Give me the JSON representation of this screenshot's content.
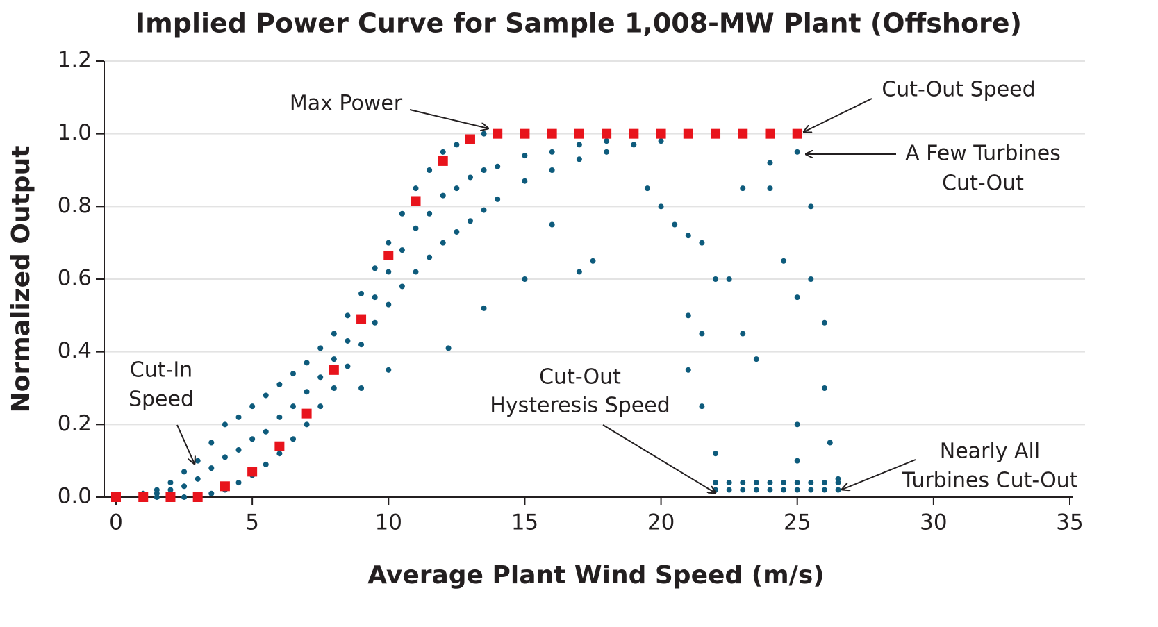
{
  "chart_data": {
    "type": "scatter",
    "title": "Implied Power Curve for Sample 1,008-MW Plant (Offshore)",
    "x_label": "Average Plant Wind Speed (m/s)",
    "y_label": "Normalized Output",
    "xlim": [
      0,
      35
    ],
    "ylim": [
      0,
      1.2
    ],
    "xticks": [
      0,
      5,
      10,
      15,
      20,
      25,
      30,
      35
    ],
    "yticks": [
      {
        "value": 0,
        "label": "0.0"
      },
      0.2,
      0.4,
      0.6,
      0.8,
      {
        "value": 1,
        "label": "1.0"
      },
      1.2
    ],
    "grid": true,
    "series": [
      {
        "color": "#0e5b7c",
        "marker": "circle",
        "x": [
          1,
          1,
          1,
          1.5,
          1.5,
          1.5,
          2,
          2,
          2,
          2.5,
          2.5,
          2.5,
          3,
          3,
          3,
          3.5,
          3.5,
          3.5,
          4,
          4,
          4,
          4.5,
          4.5,
          4.5,
          5,
          5,
          5,
          5.5,
          5.5,
          5.5,
          6,
          6,
          6,
          6.5,
          6.5,
          6.5,
          7,
          7,
          7,
          7.5,
          7.5,
          7.5,
          8,
          8,
          8,
          8.5,
          8.5,
          8.5,
          9,
          9,
          9,
          9.5,
          9.5,
          9.5,
          10,
          10,
          10,
          10.5,
          10.5,
          10.5,
          11,
          11,
          11,
          11.5,
          11.5,
          11.5,
          12,
          12,
          12,
          12.5,
          12.5,
          12.5,
          13,
          13,
          13,
          13.5,
          13.5,
          13.5,
          14,
          14,
          14,
          15,
          15,
          15,
          16,
          16,
          16,
          17,
          17,
          17,
          18,
          18,
          18,
          19,
          19,
          20,
          20,
          15,
          16,
          17,
          17.5,
          12.2,
          13.5,
          10,
          9,
          19.5,
          20,
          20.5,
          21,
          21.5,
          21,
          21,
          21.5,
          22,
          21.5,
          22,
          22.5,
          23,
          23,
          24,
          24,
          23.5,
          24.5,
          25,
          25,
          25,
          25.5,
          25.5,
          26,
          26,
          26.2,
          26.5,
          25,
          22,
          22.5,
          23,
          23.5,
          24,
          24.5,
          25,
          25.5,
          26,
          26.5,
          22,
          22.5,
          23,
          23.5,
          24,
          24.5,
          25,
          25.5,
          26,
          26.5
        ],
        "values": [
          0.01,
          0.005,
          0,
          0.02,
          0.01,
          0,
          0.04,
          0.02,
          0,
          0.07,
          0.03,
          0,
          0.1,
          0.05,
          0,
          0.15,
          0.08,
          0.01,
          0.2,
          0.11,
          0.02,
          0.22,
          0.13,
          0.04,
          0.25,
          0.16,
          0.06,
          0.28,
          0.18,
          0.09,
          0.31,
          0.22,
          0.12,
          0.34,
          0.25,
          0.16,
          0.37,
          0.29,
          0.2,
          0.41,
          0.33,
          0.25,
          0.45,
          0.38,
          0.3,
          0.5,
          0.43,
          0.36,
          0.56,
          0.49,
          0.42,
          0.63,
          0.55,
          0.48,
          0.7,
          0.62,
          0.53,
          0.78,
          0.68,
          0.58,
          0.85,
          0.74,
          0.62,
          0.9,
          0.78,
          0.66,
          0.95,
          0.83,
          0.7,
          0.97,
          0.85,
          0.73,
          0.99,
          0.88,
          0.76,
          1,
          0.9,
          0.79,
          1,
          0.91,
          0.82,
          1,
          0.94,
          0.87,
          1,
          0.95,
          0.9,
          1,
          0.97,
          0.93,
          1,
          0.98,
          0.95,
          1,
          0.97,
          1,
          0.98,
          0.6,
          0.75,
          0.62,
          0.65,
          0.41,
          0.52,
          0.35,
          0.3,
          0.85,
          0.8,
          0.75,
          0.72,
          0.7,
          0.5,
          0.35,
          0.25,
          0.12,
          0.45,
          0.6,
          0.6,
          0.45,
          0.85,
          0.85,
          0.92,
          0.38,
          0.65,
          0.55,
          0.2,
          0.1,
          0.8,
          0.6,
          0.48,
          0.3,
          0.15,
          0.05,
          0.95,
          0.04,
          0.04,
          0.04,
          0.04,
          0.04,
          0.04,
          0.04,
          0.04,
          0.04,
          0.04,
          0.02,
          0.02,
          0.02,
          0.02,
          0.02,
          0.02,
          0.02,
          0.02,
          0.02,
          0.02
        ]
      },
      {
        "color": "#e8141c",
        "marker": "square",
        "x": [
          0,
          1,
          2,
          3,
          4,
          5,
          6,
          7,
          8,
          9,
          10,
          11,
          12,
          13,
          14,
          15,
          16,
          17,
          18,
          19,
          20,
          21,
          22,
          23,
          24,
          25
        ],
        "values": [
          0,
          0,
          0,
          0,
          0.03,
          0.07,
          0.14,
          0.23,
          0.35,
          0.49,
          0.665,
          0.815,
          0.925,
          0.985,
          1,
          1,
          1,
          1,
          1,
          1,
          1,
          1,
          1,
          1,
          1,
          1
        ]
      }
    ],
    "annotations": [
      [
        "Max Power"
      ],
      [
        "Cut-Out Speed"
      ],
      [
        "A Few Turbines",
        "Cut-Out"
      ],
      [
        "Cut-In",
        "Speed"
      ],
      [
        "Cut-Out",
        "Hysteresis Speed"
      ],
      [
        "Nearly All",
        "Turbines Cut-Out"
      ]
    ]
  }
}
